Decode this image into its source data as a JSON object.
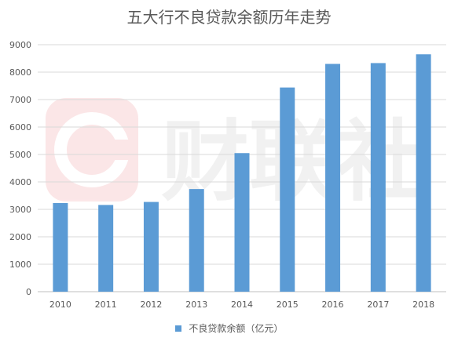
{
  "chart_data": {
    "type": "bar",
    "title": "五大行不良贷款余额历年走势",
    "categories": [
      "2010",
      "2011",
      "2012",
      "2013",
      "2014",
      "2015",
      "2016",
      "2017",
      "2018"
    ],
    "series": [
      {
        "name": "不良贷款余额（亿元）",
        "values": [
          3230,
          3160,
          3270,
          3740,
          5050,
          7440,
          8300,
          8330,
          8650
        ]
      }
    ],
    "ylim": [
      0,
      9000
    ],
    "yticks": [
      "0",
      "1000",
      "2000",
      "3000",
      "4000",
      "5000",
      "6000",
      "7000",
      "8000",
      "9000"
    ],
    "grid": true,
    "legend_position": "bottom",
    "bar_color": "#5b9bd5"
  },
  "watermark": {
    "text": "财联社"
  }
}
